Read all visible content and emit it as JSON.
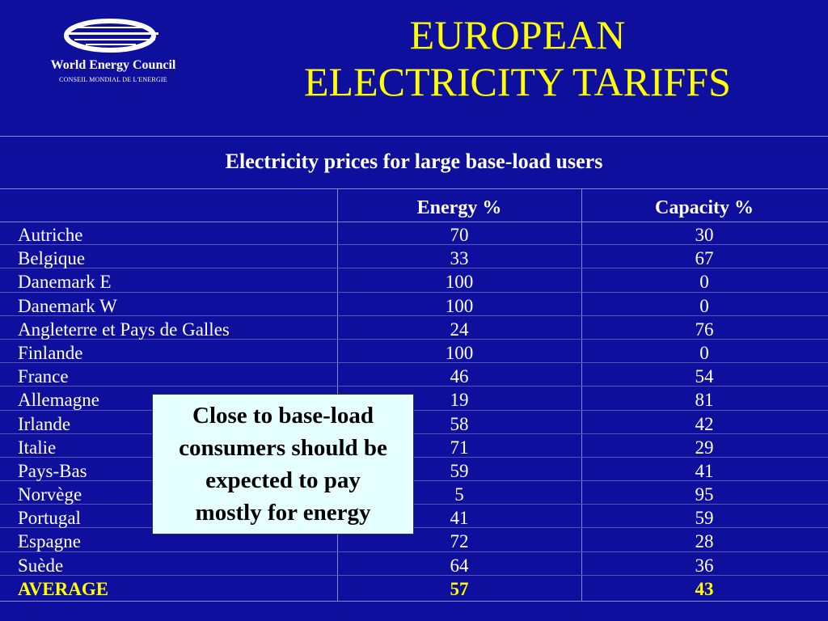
{
  "logo": {
    "name": "World Energy Council",
    "subtitle": "CONSEIL MONDIAL DE L'ENERGIE"
  },
  "title": {
    "line1": "EUROPEAN",
    "line2": "ELECTRICITY TARIFFS"
  },
  "colors": {
    "background": "#0f0f9e",
    "title": "#ffff00",
    "average": "#ffff00",
    "callout_bg": "#e6ffff"
  },
  "table": {
    "caption": "Electricity prices for large base-load users",
    "headers": [
      "",
      "Energy %",
      "Capacity %"
    ],
    "rows": [
      {
        "country": "Autriche",
        "energy": "70",
        "capacity": "30"
      },
      {
        "country": "Belgique",
        "energy": "33",
        "capacity": "67"
      },
      {
        "country": "Danemark E",
        "energy": "100",
        "capacity": "0"
      },
      {
        "country": "Danemark W",
        "energy": "100",
        "capacity": "0"
      },
      {
        "country": "Angleterre et Pays de Galles",
        "energy": "24",
        "capacity": "76"
      },
      {
        "country": "Finlande",
        "energy": "100",
        "capacity": "0"
      },
      {
        "country": "France",
        "energy": "46",
        "capacity": "54"
      },
      {
        "country": "Allemagne",
        "energy": "19",
        "capacity": "81"
      },
      {
        "country": "Irlande",
        "energy": "58",
        "capacity": "42"
      },
      {
        "country": "Italie",
        "energy": "71",
        "capacity": "29"
      },
      {
        "country": "Pays-Bas",
        "energy": "59",
        "capacity": "41"
      },
      {
        "country": "Norvège",
        "energy": "5",
        "capacity": "95"
      },
      {
        "country": "Portugal",
        "energy": "41",
        "capacity": "59"
      },
      {
        "country": "Espagne",
        "energy": "72",
        "capacity": "28"
      },
      {
        "country": "Suède",
        "energy": "64",
        "capacity": "36"
      },
      {
        "country": "AVERAGE",
        "energy": "57",
        "capacity": "43"
      }
    ]
  },
  "callout": {
    "lines": [
      "Close to base-load",
      "consumers should be",
      "expected to pay",
      "mostly for energy"
    ]
  }
}
